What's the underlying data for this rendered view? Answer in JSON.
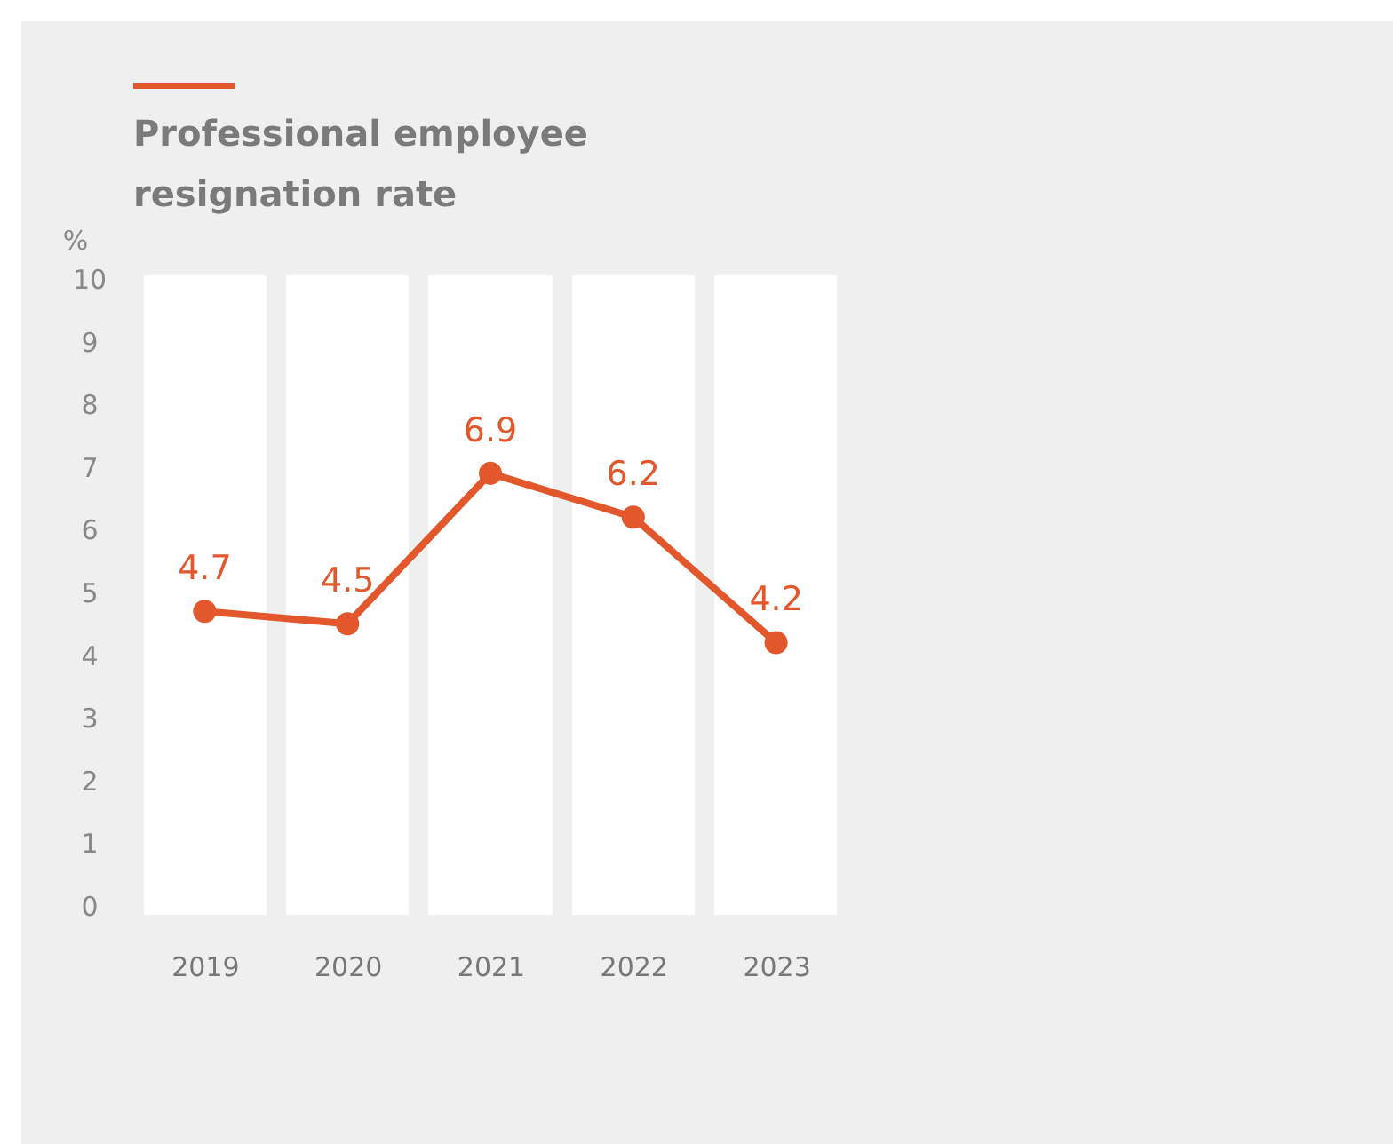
{
  "chart_data": {
    "type": "line",
    "title": "Professional employee resignation rate",
    "ylabel": "%",
    "categories": [
      "2019",
      "2020",
      "2021",
      "2022",
      "2023"
    ],
    "series": [
      {
        "color": "#e2582c",
        "values": [
          4.7,
          4.5,
          6.9,
          6.2,
          4.2
        ]
      }
    ],
    "ylim": [
      0,
      10
    ],
    "yticks": [
      0,
      1,
      2,
      3,
      4,
      5,
      6,
      7,
      8,
      9,
      10
    ],
    "bands": [
      {
        "axis": "x",
        "from": "2019",
        "to": "2019",
        "color": "#ffffff"
      },
      {
        "axis": "x",
        "from": "2020",
        "to": "2020",
        "color": "#ffffff"
      },
      {
        "axis": "x",
        "from": "2021",
        "to": "2021",
        "color": "#ffffff"
      },
      {
        "axis": "x",
        "from": "2022",
        "to": "2022",
        "color": "#ffffff"
      },
      {
        "axis": "x",
        "from": "2023",
        "to": "2023",
        "color": "#ffffff"
      }
    ],
    "data_labels": true,
    "marker": "circle",
    "line_style": "solid",
    "grid": false,
    "legend": false
  }
}
